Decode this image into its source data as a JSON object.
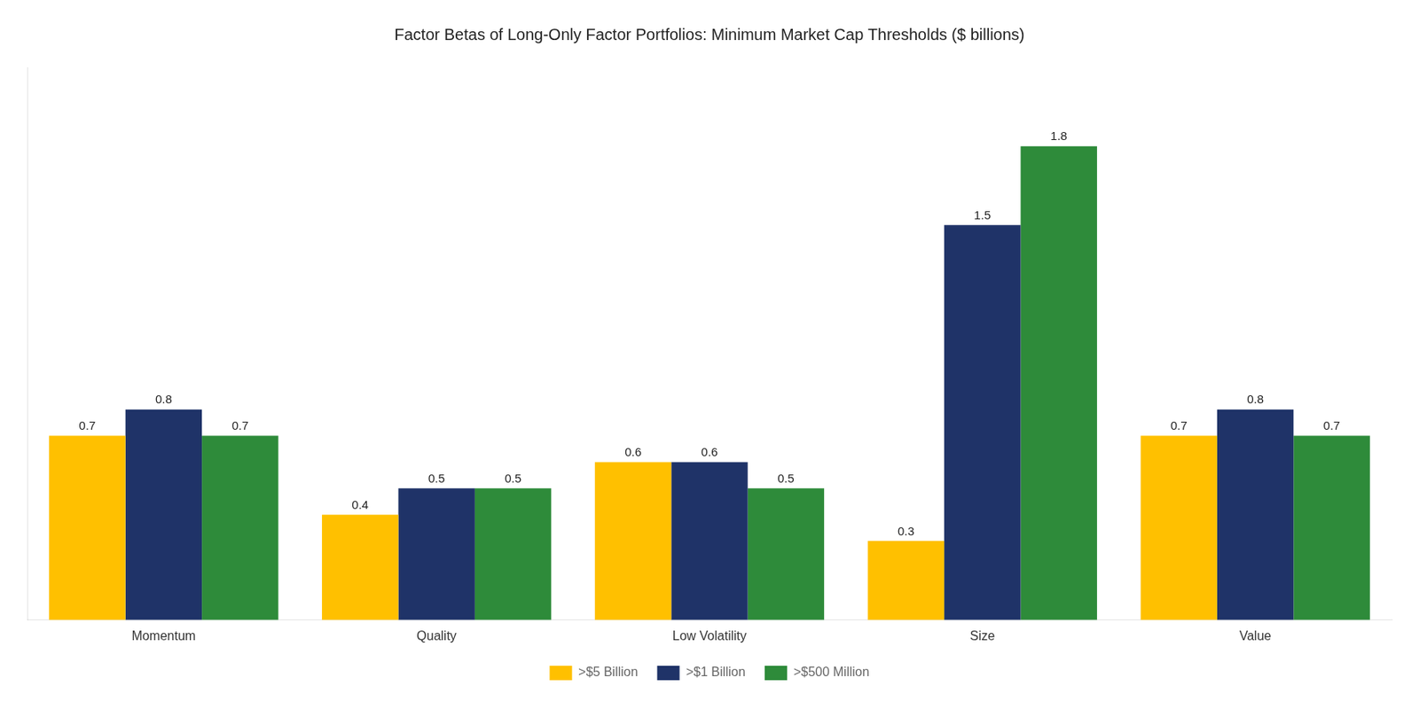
{
  "chart_data": {
    "type": "bar",
    "title": "Factor Betas of Long-Only Factor Portfolios: Minimum Market Cap Thresholds ($ billions)",
    "categories": [
      "Momentum",
      "Quality",
      "Low Volatility",
      "Size",
      "Value"
    ],
    "series": [
      {
        "name": ">$5 Billion",
        "color": "#FFC000",
        "values": [
          0.7,
          0.4,
          0.6,
          0.3,
          0.7
        ]
      },
      {
        "name": ">$1 Billion",
        "color": "#1F3368",
        "values": [
          0.8,
          0.5,
          0.6,
          1.5,
          0.8
        ]
      },
      {
        "name": ">$500 Million",
        "color": "#2E8B3A",
        "values": [
          0.7,
          0.5,
          0.5,
          1.8,
          0.7
        ]
      }
    ],
    "ylim": [
      0,
      2.1
    ],
    "grid": false,
    "legend": "bottom",
    "data_labels": true,
    "tick_labels": "x"
  }
}
